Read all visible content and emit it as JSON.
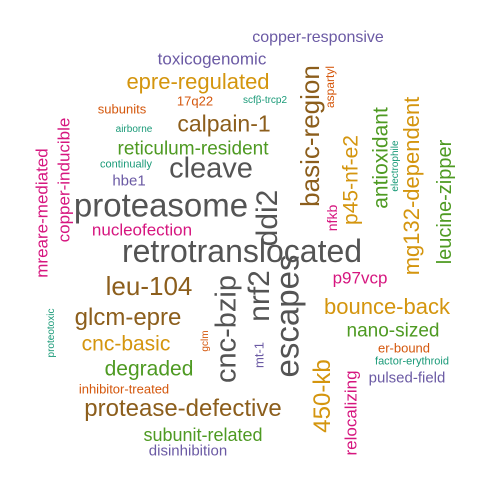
{
  "words": [
    {
      "text": "retrotranslocated",
      "color": "#545454"
    },
    {
      "text": "proteasome",
      "color": "#545454"
    },
    {
      "text": "escapes",
      "color": "#545454"
    },
    {
      "text": "cleave",
      "color": "#545454"
    },
    {
      "text": "cnc-bzip",
      "color": "#545454"
    },
    {
      "text": "nrf2",
      "color": "#545454"
    },
    {
      "text": "ddi2",
      "color": "#545454"
    },
    {
      "text": "basic-region",
      "color": "#8c5e1c"
    },
    {
      "text": "calpain-1",
      "color": "#8c5e1c"
    },
    {
      "text": "leu-104",
      "color": "#8c5e1c"
    },
    {
      "text": "glcm-epre",
      "color": "#8c5e1c"
    },
    {
      "text": "protease-defective",
      "color": "#8c5e1c"
    },
    {
      "text": "epre-regulated",
      "color": "#d4950e"
    },
    {
      "text": "bounce-back",
      "color": "#d4950e"
    },
    {
      "text": "cnc-basic",
      "color": "#d4950e"
    },
    {
      "text": "450-kb",
      "color": "#d4950e"
    },
    {
      "text": "p45-nf-e2",
      "color": "#d4950e"
    },
    {
      "text": "mg132-dependent",
      "color": "#d4950e"
    },
    {
      "text": "antioxidant",
      "color": "#4e9a22"
    },
    {
      "text": "leucine-zipper",
      "color": "#4e9a22"
    },
    {
      "text": "reticulum-resident",
      "color": "#4e9a22"
    },
    {
      "text": "nano-sized",
      "color": "#4e9a22"
    },
    {
      "text": "degraded",
      "color": "#4e9a22"
    },
    {
      "text": "subunit-related",
      "color": "#4e9a22"
    },
    {
      "text": "copper-responsive",
      "color": "#6b5aa4"
    },
    {
      "text": "toxicogenomic",
      "color": "#6b5aa4"
    },
    {
      "text": "hbe1",
      "color": "#6b5aa4"
    },
    {
      "text": "mt-1",
      "color": "#6b5aa4"
    },
    {
      "text": "pulsed-field",
      "color": "#6b5aa4"
    },
    {
      "text": "disinhibition",
      "color": "#6b5aa4"
    },
    {
      "text": "nucleofection",
      "color": "#d6167f"
    },
    {
      "text": "copper-inducible",
      "color": "#d6167f"
    },
    {
      "text": "mreare-mediated",
      "color": "#d6167f"
    },
    {
      "text": "p97vcp",
      "color": "#d6167f"
    },
    {
      "text": "nfkb",
      "color": "#d6167f"
    },
    {
      "text": "relocalizing",
      "color": "#d6167f"
    },
    {
      "text": "17q22",
      "color": "#d4570c"
    },
    {
      "text": "subunits",
      "color": "#d4570c"
    },
    {
      "text": "aspartyl",
      "color": "#d4570c"
    },
    {
      "text": "er-bound",
      "color": "#d4570c"
    },
    {
      "text": "inhibitor-treated",
      "color": "#d4570c"
    },
    {
      "text": "gclm",
      "color": "#d4570c"
    },
    {
      "text": "scfβ-trcp2",
      "color": "#1a9a78"
    },
    {
      "text": "airborne",
      "color": "#1a9a78"
    },
    {
      "text": "continually",
      "color": "#1a9a78"
    },
    {
      "text": "electrophile",
      "color": "#1a9a78"
    },
    {
      "text": "factor-erythroid",
      "color": "#1a9a78"
    },
    {
      "text": "proteotoxic",
      "color": "#1a9a78"
    }
  ]
}
